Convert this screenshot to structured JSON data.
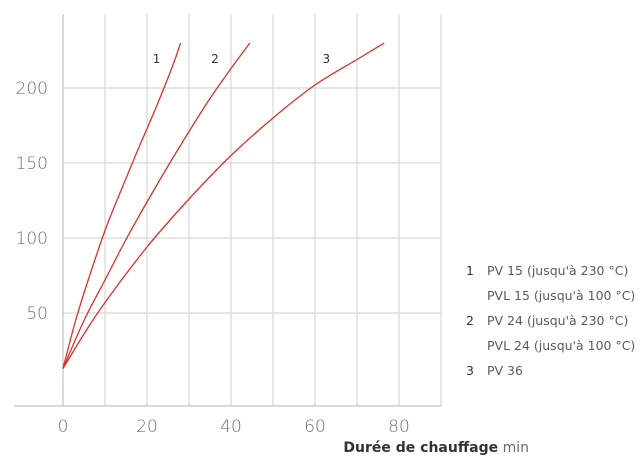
{
  "chart_data": {
    "type": "line",
    "xlabel_bold": "Durée de chauffage",
    "xlabel_unit": "min",
    "ylabel": "",
    "xlim": [
      0,
      90
    ],
    "ylim": [
      0,
      240
    ],
    "x_ticks": [
      0,
      20,
      40,
      60,
      80
    ],
    "x_tick_labels": [
      "0",
      "20",
      "40",
      "60",
      "80"
    ],
    "y_ticks": [
      50,
      100,
      150,
      200
    ],
    "y_tick_labels": [
      "50",
      "100",
      "150",
      "200"
    ],
    "grid": true,
    "line_color": "#d9312b",
    "series": [
      {
        "name": "1",
        "label": "1",
        "x": [
          0,
          3,
          6,
          10,
          14,
          18,
          22,
          26,
          28
        ],
        "y": [
          13,
          45,
          72,
          105,
          133,
          160,
          186,
          214,
          230
        ]
      },
      {
        "name": "2",
        "label": "2",
        "x": [
          0,
          5,
          10,
          15,
          20,
          25,
          30,
          35,
          40,
          44.5
        ],
        "y": [
          13,
          45,
          72,
          99,
          124,
          148,
          171,
          193,
          213,
          230
        ]
      },
      {
        "name": "3",
        "label": "3",
        "x": [
          0,
          5,
          10,
          20,
          30,
          40,
          50,
          60,
          70,
          76.5
        ],
        "y": [
          13,
          36,
          57,
          94,
          126,
          155,
          180,
          202,
          219,
          230
        ]
      }
    ]
  },
  "legend": [
    {
      "num": "1",
      "text": "PV 15 (jusqu'à 230 °C)",
      "sub": "PVL 15 (jusqu'à 100 °C)"
    },
    {
      "num": "2",
      "text": "PV 24 (jusqu'à 230 °C)",
      "sub": "PVL 24 (jusqu'à 100 °C)"
    },
    {
      "num": "3",
      "text": "PV 36",
      "sub": ""
    }
  ]
}
